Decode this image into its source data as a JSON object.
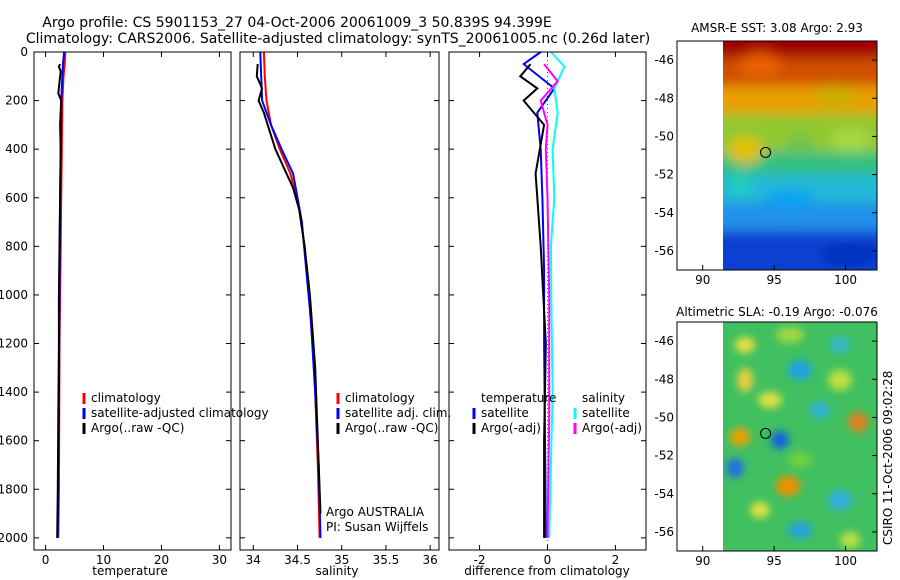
{
  "title_line1": "Argo profile: CS 5901153_27 04-Oct-2006 20061009_3 50.839S 94.399E",
  "title_line2": "Climatology: CARS2006. Satellite-adjusted climatology: synTS_20061005.nc (0.26d later)",
  "colors": {
    "climatology": "#ff0000",
    "satellite": "#0000ff",
    "argo": "#000000",
    "sal_satellite": "#00ffff",
    "sal_argo": "#ff00ff",
    "dotted": "#555555"
  },
  "chart_data": [
    {
      "type": "line",
      "xlabel": "temperature",
      "xlim": [
        -2,
        32
      ],
      "ylim": [
        0,
        2050
      ],
      "xticks": [
        0,
        10,
        20,
        30
      ],
      "yticks": [
        0,
        200,
        400,
        600,
        800,
        1000,
        1200,
        1400,
        1600,
        1800,
        2000
      ],
      "legend": [
        "climatology",
        "satellite-adjusted climatology",
        "Argo(..raw -QC)"
      ],
      "series": [
        {
          "name": "climatology",
          "color": "#ff0000",
          "x": [
            3.4,
            3.3,
            3.1,
            2.9,
            2.8,
            2.7,
            2.6,
            2.5,
            2.4,
            2.35,
            2.3,
            2.2
          ],
          "y": [
            0,
            50,
            100,
            200,
            400,
            600,
            800,
            1000,
            1200,
            1500,
            1800,
            2000
          ]
        },
        {
          "name": "satellite-adjusted climatology",
          "color": "#0000ff",
          "x": [
            3.2,
            3.0,
            2.9,
            2.7,
            2.6,
            2.5,
            2.45,
            2.4,
            2.35,
            2.3,
            2.2,
            2.1
          ],
          "y": [
            0,
            50,
            100,
            200,
            400,
            600,
            800,
            1000,
            1200,
            1500,
            1800,
            2000
          ]
        },
        {
          "name": "Argo(..raw -QC)",
          "color": "#000000",
          "x": [
            2.5,
            2.3,
            2.6,
            2.2,
            2.7,
            2.5,
            2.6,
            2.5,
            2.4,
            2.3,
            2.3,
            2.2,
            2.1,
            2.0
          ],
          "y": [
            50,
            60,
            80,
            170,
            200,
            300,
            400,
            600,
            800,
            1000,
            1200,
            1500,
            1800,
            2000
          ]
        }
      ]
    },
    {
      "type": "line",
      "xlabel": "salinity",
      "xlim": [
        33.85,
        36.1
      ],
      "ylim": [
        0,
        2050
      ],
      "xticks": [
        34,
        34.5,
        35,
        35.5,
        36
      ],
      "legend": [
        "climatology",
        "satellite adj. clim.",
        "Argo(..raw -QC)"
      ],
      "annotation": [
        "Argo AUSTRALIA",
        "PI: Susan Wijffels"
      ],
      "series": [
        {
          "name": "climatology",
          "color": "#ff0000",
          "x": [
            34.12,
            34.13,
            34.15,
            34.2,
            34.3,
            34.42,
            34.52,
            34.58,
            34.63,
            34.67,
            34.7,
            34.73,
            34.75
          ],
          "y": [
            0,
            100,
            200,
            300,
            400,
            500,
            650,
            800,
            1000,
            1200,
            1400,
            1700,
            2000
          ]
        },
        {
          "name": "satellite adj. clim.",
          "color": "#0000ff",
          "x": [
            34.08,
            34.09,
            34.1,
            34.2,
            34.32,
            34.45,
            34.5,
            34.55,
            34.6,
            34.65,
            34.7,
            34.74,
            34.76
          ],
          "y": [
            0,
            100,
            200,
            300,
            400,
            500,
            600,
            700,
            900,
            1100,
            1400,
            1700,
            2000
          ]
        },
        {
          "name": "Argo(..raw -QC)",
          "color": "#000000",
          "x": [
            34.05,
            34.04,
            34.1,
            34.06,
            34.12,
            34.18,
            34.25,
            34.35,
            34.45,
            34.52,
            34.58,
            34.64,
            34.7,
            34.73,
            34.76
          ],
          "y": [
            50,
            100,
            150,
            200,
            250,
            320,
            400,
            480,
            560,
            650,
            800,
            1000,
            1300,
            1600,
            1900
          ]
        }
      ]
    },
    {
      "type": "line",
      "xlabel": "difference from climatology",
      "xlim": [
        -2.9,
        2.9
      ],
      "ylim": [
        0,
        2050
      ],
      "xticks": [
        -2,
        0,
        2
      ],
      "legend_left": [
        "temperature",
        "satellite",
        "Argo(-adj)"
      ],
      "legend_right": [
        "salinity",
        "satellite",
        "Argo(-adj)"
      ],
      "series": [
        {
          "name": "temperature satellite",
          "color": "#0000ff",
          "x": [
            -0.2,
            -0.7,
            0.2,
            -0.3,
            -0.2,
            -0.15,
            -0.1,
            -0.1,
            -0.08,
            -0.06,
            -0.05
          ],
          "y": [
            0,
            50,
            150,
            250,
            400,
            600,
            900,
            1200,
            1500,
            1800,
            2000
          ]
        },
        {
          "name": "temperature Argo(-adj)",
          "color": "#000000",
          "x": [
            -0.5,
            -0.8,
            -0.3,
            -0.7,
            -0.1,
            -0.35,
            -0.2,
            -0.05,
            -0.1,
            -0.1
          ],
          "y": [
            50,
            100,
            150,
            200,
            300,
            500,
            800,
            1200,
            1600,
            2000
          ]
        },
        {
          "name": "salinity satellite",
          "color": "#00ffff",
          "x": [
            0.1,
            0.5,
            0.2,
            0.3,
            0.15,
            0.2,
            0.1,
            0.12,
            0.15,
            0.1,
            0.05
          ],
          "y": [
            0,
            60,
            150,
            250,
            400,
            600,
            800,
            1100,
            1400,
            1700,
            2000
          ]
        },
        {
          "name": "salinity Argo(-adj)",
          "color": "#ff00ff",
          "x": [
            -0.1,
            0.3,
            -0.2,
            0.0,
            -0.05,
            0.0,
            0.05,
            0.05,
            0.0
          ],
          "y": [
            50,
            120,
            200,
            300,
            400,
            600,
            1000,
            1500,
            2000
          ]
        }
      ]
    },
    {
      "type": "heatmap",
      "title": "AMSR-E SST: 3.08 Argo: 2.93",
      "xticks": [
        90,
        95,
        100
      ],
      "yticks": [
        -46,
        -48,
        -50,
        -52,
        -54,
        -56
      ],
      "xlim": [
        90,
        102.5
      ],
      "ylim": [
        -57,
        -45
      ],
      "marker": [
        94.399,
        -50.839
      ]
    },
    {
      "type": "heatmap",
      "title": "Altimetric SLA: -0.19 Argo: -0.076",
      "xticks": [
        90,
        95,
        100
      ],
      "yticks": [
        -46,
        -48,
        -50,
        -52,
        -54,
        -56
      ],
      "xlim": [
        90,
        102.5
      ],
      "ylim": [
        -57,
        -45
      ],
      "marker": [
        94.399,
        -50.839
      ]
    }
  ],
  "footer_text": "CSIRO 11-Oct-2006 09:02:28"
}
